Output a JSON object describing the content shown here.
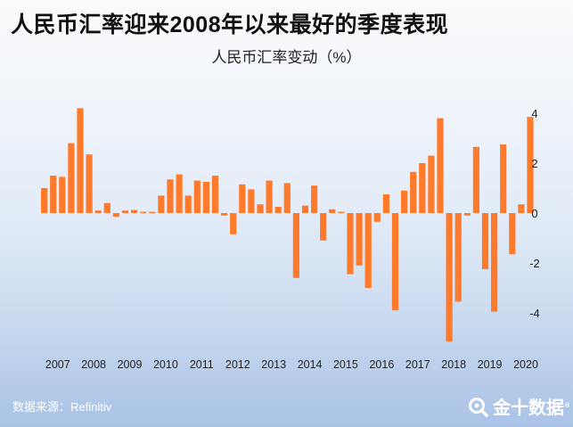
{
  "headline": "人民币汇率迎来2008年以来最好的季度表现",
  "source_text": "数据来源：Refinitiv",
  "brand": {
    "name": "金十数据",
    "mark": "®",
    "icon": "magnifier-logo-icon"
  },
  "colors": {
    "bar": "#ff7a2b",
    "text": "#111111",
    "tick": "#222222",
    "footer_text": "#ffffff"
  },
  "chart_data": {
    "type": "bar",
    "title": "人民币汇率变动（%）",
    "xlabel": "",
    "ylabel": "",
    "ylim": [
      -5.2,
      4.4
    ],
    "yticks": [
      4,
      2,
      0,
      -2,
      -4
    ],
    "year_labels": [
      "2007",
      "2008",
      "2009",
      "2010",
      "2011",
      "2012",
      "2013",
      "2014",
      "2015",
      "2016",
      "2017",
      "2018",
      "2019",
      "2020"
    ],
    "categories": [
      "2007Q1",
      "2007Q2",
      "2007Q3",
      "2007Q4",
      "2008Q1",
      "2008Q2",
      "2008Q3",
      "2008Q4",
      "2009Q1",
      "2009Q2",
      "2009Q3",
      "2009Q4",
      "2010Q1",
      "2010Q2",
      "2010Q3",
      "2010Q4",
      "2011Q1",
      "2011Q2",
      "2011Q3",
      "2011Q4",
      "2012Q1",
      "2012Q2",
      "2012Q3",
      "2012Q4",
      "2013Q1",
      "2013Q2",
      "2013Q3",
      "2013Q4",
      "2014Q1",
      "2014Q2",
      "2014Q3",
      "2014Q4",
      "2015Q1",
      "2015Q2",
      "2015Q3",
      "2015Q4",
      "2016Q1",
      "2016Q2",
      "2016Q3",
      "2016Q4",
      "2017Q1",
      "2017Q2",
      "2017Q3",
      "2017Q4",
      "2018Q1",
      "2018Q2",
      "2018Q3",
      "2018Q4",
      "2019Q1",
      "2019Q2",
      "2019Q3",
      "2019Q4",
      "2020Q1",
      "2020Q2",
      "2020Q3"
    ],
    "values": [
      1.0,
      1.5,
      1.45,
      2.8,
      4.2,
      2.35,
      0.1,
      0.4,
      -0.15,
      0.1,
      0.12,
      0.05,
      0.05,
      0.7,
      1.35,
      1.55,
      0.7,
      1.3,
      1.25,
      1.5,
      -0.1,
      -0.85,
      1.15,
      0.95,
      0.35,
      1.3,
      0.25,
      1.2,
      -2.6,
      0.3,
      1.1,
      -1.1,
      0.15,
      0.05,
      -2.45,
      -2.1,
      -3.0,
      -0.35,
      0.75,
      -3.9,
      0.9,
      1.65,
      2.0,
      2.3,
      3.8,
      -5.15,
      -3.55,
      -0.1,
      2.65,
      -2.25,
      -3.95,
      2.75,
      -1.65,
      0.35,
      3.85
    ]
  }
}
